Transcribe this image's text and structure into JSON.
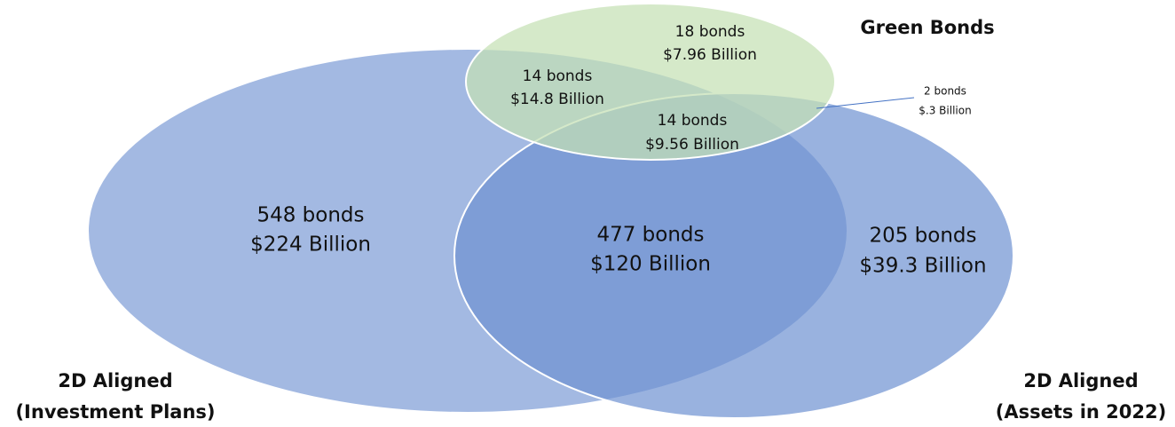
{
  "sets": [
    {
      "label": [
        "Green Bonds"
      ]
    },
    {
      "label": [
        "2D Aligned",
        "(Investment Plans)"
      ]
    },
    {
      "label": [
        "2D Aligned",
        "(Assets in 2022)"
      ]
    }
  ],
  "regions": [
    {
      "count": "548 bonds",
      "amount": "$224 Billion"
    },
    {
      "count": "477 bonds",
      "amount": "$120 Billion"
    },
    {
      "count": "205 bonds",
      "amount": "$39.3 Billion"
    },
    {
      "count": "18 bonds",
      "amount": "$7.96 Billion"
    },
    {
      "count": "14 bonds",
      "amount": "$14.8 Billion"
    },
    {
      "count": "14 bonds",
      "amount": "$9.56 Billion"
    },
    {
      "count": "2 bonds",
      "amount": "$.3 Billion"
    }
  ]
}
